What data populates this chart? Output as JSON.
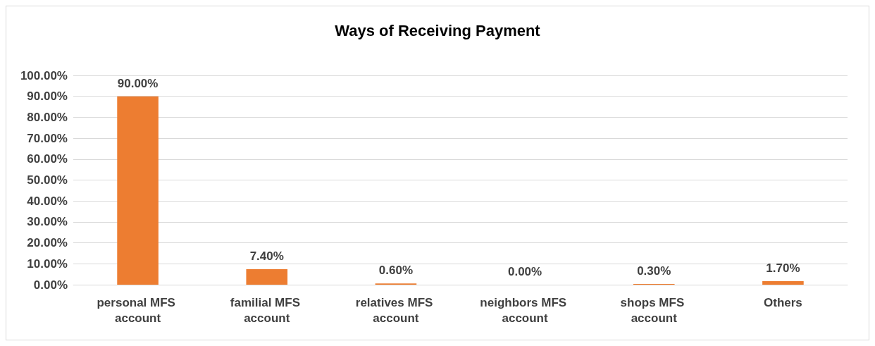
{
  "chart_data": {
    "type": "bar",
    "title": "Ways of Receiving Payment",
    "categories": [
      "personal MFS account",
      "familial MFS account",
      "relatives MFS account",
      "neighbors MFS account",
      "shops MFS account",
      "Others"
    ],
    "values": [
      90,
      7.4,
      0.6,
      0,
      0.3,
      1.7
    ],
    "value_labels": [
      "90.00%",
      "7.40%",
      "0.60%",
      "0.00%",
      "0.30%",
      "1.70%"
    ],
    "color": "#ed7d31",
    "ylim": [
      0,
      100
    ],
    "yticks": [
      {
        "value": 0,
        "label": "0.00%"
      },
      {
        "value": 10,
        "label": "10.00%"
      },
      {
        "value": 20,
        "label": "20.00%"
      },
      {
        "value": 30,
        "label": "30.00%"
      },
      {
        "value": 40,
        "label": "40.00%"
      },
      {
        "value": 50,
        "label": "50.00%"
      },
      {
        "value": 60,
        "label": "60.00%"
      },
      {
        "value": 70,
        "label": "70.00%"
      },
      {
        "value": 80,
        "label": "80.00%"
      },
      {
        "value": 90,
        "label": "90.00%"
      },
      {
        "value": 100,
        "label": "100.00%"
      }
    ],
    "grid": "y"
  }
}
